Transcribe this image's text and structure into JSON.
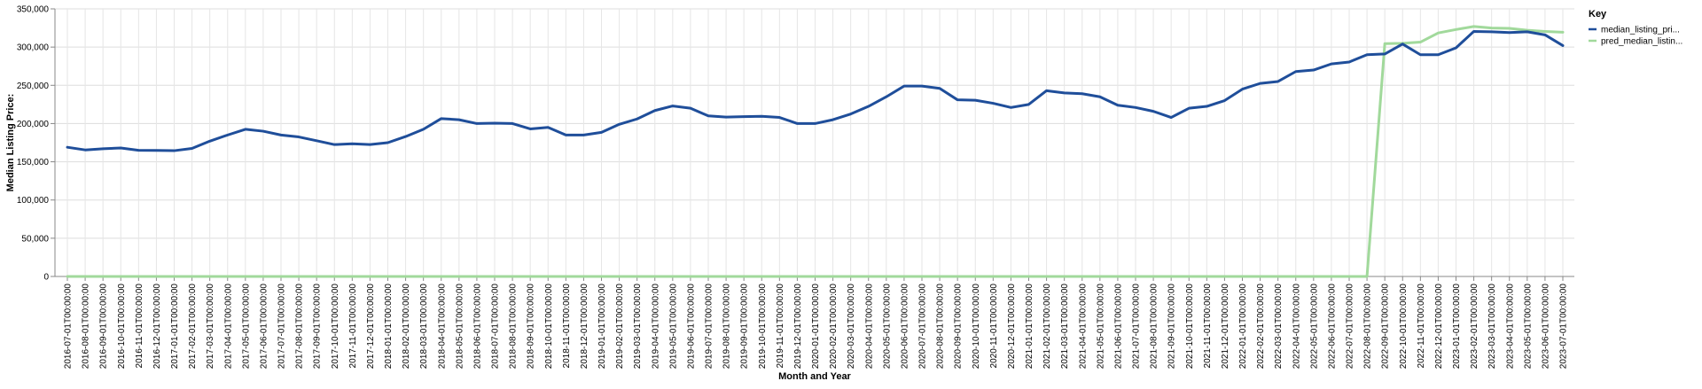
{
  "chart_data": {
    "type": "line",
    "xlabel": "Month and Year",
    "ylabel": "Median Listing Price:",
    "ylim": [
      0,
      350000
    ],
    "y_ticks": [
      "0",
      "50,000",
      "100,000",
      "150,000",
      "200,000",
      "250,000",
      "300,000",
      "350,000"
    ],
    "y_tick_values": [
      0,
      50000,
      100000,
      150000,
      200000,
      250000,
      300000,
      350000
    ],
    "grid": true,
    "legend": {
      "title": "Key",
      "placement": "top-right"
    },
    "categories": [
      "2016-07-01T00:00:00",
      "2016-08-01T00:00:00",
      "2016-09-01T00:00:00",
      "2016-10-01T00:00:00",
      "2016-11-01T00:00:00",
      "2016-12-01T00:00:00",
      "2017-01-01T00:00:00",
      "2017-02-01T00:00:00",
      "2017-03-01T00:00:00",
      "2017-04-01T00:00:00",
      "2017-05-01T00:00:00",
      "2017-06-01T00:00:00",
      "2017-07-01T00:00:00",
      "2017-08-01T00:00:00",
      "2017-09-01T00:00:00",
      "2017-10-01T00:00:00",
      "2017-11-01T00:00:00",
      "2017-12-01T00:00:00",
      "2018-01-01T00:00:00",
      "2018-02-01T00:00:00",
      "2018-03-01T00:00:00",
      "2018-04-01T00:00:00",
      "2018-05-01T00:00:00",
      "2018-06-01T00:00:00",
      "2018-07-01T00:00:00",
      "2018-08-01T00:00:00",
      "2018-09-01T00:00:00",
      "2018-10-01T00:00:00",
      "2018-11-01T00:00:00",
      "2018-12-01T00:00:00",
      "2019-01-01T00:00:00",
      "2019-02-01T00:00:00",
      "2019-03-01T00:00:00",
      "2019-04-01T00:00:00",
      "2019-05-01T00:00:00",
      "2019-06-01T00:00:00",
      "2019-07-01T00:00:00",
      "2019-08-01T00:00:00",
      "2019-09-01T00:00:00",
      "2019-10-01T00:00:00",
      "2019-11-01T00:00:00",
      "2019-12-01T00:00:00",
      "2020-01-01T00:00:00",
      "2020-02-01T00:00:00",
      "2020-03-01T00:00:00",
      "2020-04-01T00:00:00",
      "2020-05-01T00:00:00",
      "2020-06-01T00:00:00",
      "2020-07-01T00:00:00",
      "2020-08-01T00:00:00",
      "2020-09-01T00:00:00",
      "2020-10-01T00:00:00",
      "2020-11-01T00:00:00",
      "2020-12-01T00:00:00",
      "2021-01-01T00:00:00",
      "2021-02-01T00:00:00",
      "2021-03-01T00:00:00",
      "2021-04-01T00:00:00",
      "2021-05-01T00:00:00",
      "2021-06-01T00:00:00",
      "2021-07-01T00:00:00",
      "2021-08-01T00:00:00",
      "2021-09-01T00:00:00",
      "2021-10-01T00:00:00",
      "2021-11-01T00:00:00",
      "2021-12-01T00:00:00",
      "2022-01-01T00:00:00",
      "2022-02-01T00:00:00",
      "2022-03-01T00:00:00",
      "2022-04-01T00:00:00",
      "2022-05-01T00:00:00",
      "2022-06-01T00:00:00",
      "2022-07-01T00:00:00",
      "2022-08-01T00:00:00",
      "2022-09-01T00:00:00",
      "2022-10-01T00:00:00",
      "2022-11-01T00:00:00",
      "2022-12-01T00:00:00",
      "2023-01-01T00:00:00",
      "2023-02-01T00:00:00",
      "2023-03-01T00:00:00",
      "2023-04-01T00:00:00",
      "2023-05-01T00:00:00",
      "2023-06-01T00:00:00",
      "2023-07-01T00:00:00"
    ],
    "series": [
      {
        "name": "median_listing_pri...",
        "color": "#1f4e9a",
        "values": [
          169000,
          165500,
          167000,
          168000,
          165000,
          164800,
          164500,
          167500,
          177000,
          185000,
          192500,
          190000,
          185000,
          182500,
          177500,
          172500,
          173500,
          172500,
          175000,
          183000,
          192500,
          206500,
          205000,
          200000,
          200500,
          200000,
          193000,
          195000,
          185000,
          185000,
          188500,
          199000,
          206000,
          217000,
          223000,
          220000,
          210000,
          208500,
          209000,
          209500,
          208000,
          200000,
          200000,
          205000,
          212500,
          222500,
          235000,
          249000,
          249000,
          246000,
          231000,
          230500,
          226500,
          221000,
          225000,
          243000,
          240000,
          239000,
          235000,
          224000,
          221000,
          216000,
          208000,
          220000,
          222500,
          230000,
          245000,
          252500,
          255000,
          268000,
          270000,
          278000,
          280500,
          290000,
          291000,
          304000,
          290000,
          290000,
          299000,
          320500,
          320000,
          319000,
          320000,
          316000,
          302000
        ]
      },
      {
        "name": "pred_median_listin...",
        "color": "#a1d99b",
        "values": [
          0,
          0,
          0,
          0,
          0,
          0,
          0,
          0,
          0,
          0,
          0,
          0,
          0,
          0,
          0,
          0,
          0,
          0,
          0,
          0,
          0,
          0,
          0,
          0,
          0,
          0,
          0,
          0,
          0,
          0,
          0,
          0,
          0,
          0,
          0,
          0,
          0,
          0,
          0,
          0,
          0,
          0,
          0,
          0,
          0,
          0,
          0,
          0,
          0,
          0,
          0,
          0,
          0,
          0,
          0,
          0,
          0,
          0,
          0,
          0,
          0,
          0,
          0,
          0,
          0,
          0,
          0,
          0,
          0,
          0,
          0,
          0,
          0,
          0,
          304500,
          305000,
          306500,
          318500,
          323000,
          327000,
          325000,
          324500,
          322000,
          320500,
          319500
        ]
      }
    ]
  }
}
